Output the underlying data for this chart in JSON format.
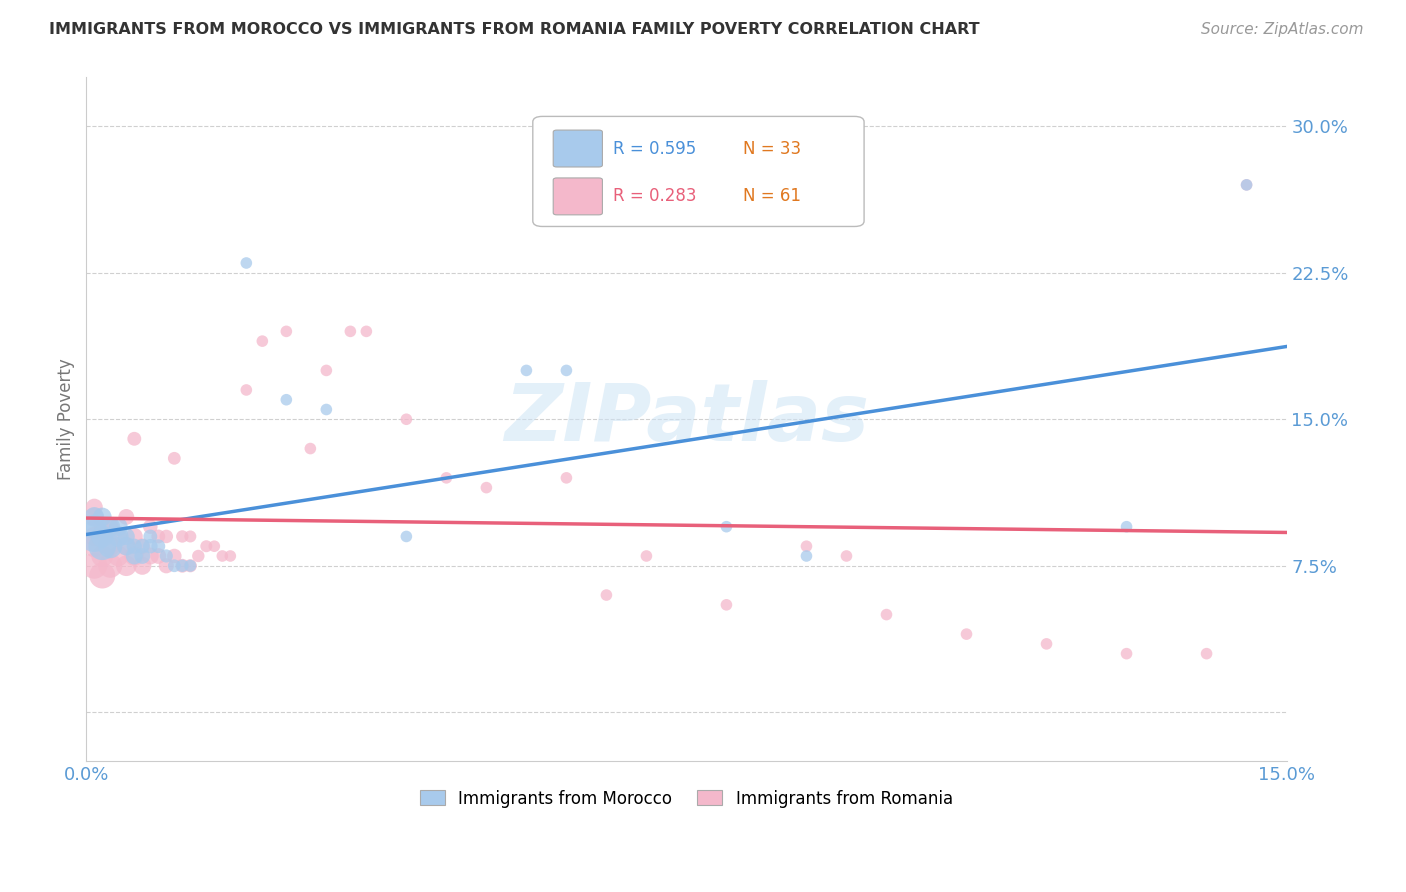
{
  "title": "IMMIGRANTS FROM MOROCCO VS IMMIGRANTS FROM ROMANIA FAMILY POVERTY CORRELATION CHART",
  "source": "Source: ZipAtlas.com",
  "ylabel_label": "Family Poverty",
  "x_min": 0.0,
  "x_max": 0.15,
  "y_min": -0.025,
  "y_max": 0.325,
  "x_ticks": [
    0.0,
    0.03,
    0.06,
    0.09,
    0.12,
    0.15
  ],
  "x_tick_labels": [
    "0.0%",
    "",
    "",
    "",
    "",
    "15.0%"
  ],
  "y_ticks": [
    0.0,
    0.075,
    0.15,
    0.225,
    0.3
  ],
  "y_tick_labels": [
    "",
    "7.5%",
    "15.0%",
    "22.5%",
    "30.0%"
  ],
  "watermark": "ZIPatlas",
  "blue_color": "#a8caec",
  "pink_color": "#f4b8cb",
  "blue_line_color": "#4a90d9",
  "pink_line_color": "#e8607a",
  "axis_color": "#5b9bd5",
  "grid_color": "#d0d0d0",
  "title_color": "#333333",
  "source_color": "#999999",
  "background_color": "#ffffff",
  "n_color": "#e07820",
  "morocco_x": [
    0.001,
    0.001,
    0.001,
    0.002,
    0.002,
    0.002,
    0.003,
    0.003,
    0.004,
    0.004,
    0.005,
    0.005,
    0.006,
    0.006,
    0.007,
    0.007,
    0.008,
    0.008,
    0.009,
    0.01,
    0.011,
    0.012,
    0.013,
    0.02,
    0.025,
    0.03,
    0.04,
    0.055,
    0.06,
    0.08,
    0.09,
    0.13,
    0.145
  ],
  "morocco_y": [
    0.09,
    0.095,
    0.1,
    0.085,
    0.09,
    0.1,
    0.085,
    0.095,
    0.09,
    0.095,
    0.085,
    0.09,
    0.08,
    0.085,
    0.08,
    0.085,
    0.085,
    0.09,
    0.085,
    0.08,
    0.075,
    0.075,
    0.075,
    0.23,
    0.16,
    0.155,
    0.09,
    0.175,
    0.175,
    0.095,
    0.08,
    0.095,
    0.27
  ],
  "morocco_sizes": [
    500,
    300,
    200,
    400,
    250,
    180,
    300,
    200,
    220,
    180,
    180,
    150,
    150,
    120,
    130,
    110,
    110,
    100,
    100,
    90,
    85,
    80,
    75,
    70,
    70,
    70,
    70,
    70,
    70,
    70,
    70,
    70,
    70
  ],
  "romania_x": [
    0.001,
    0.001,
    0.001,
    0.001,
    0.001,
    0.002,
    0.002,
    0.002,
    0.002,
    0.003,
    0.003,
    0.003,
    0.004,
    0.004,
    0.005,
    0.005,
    0.005,
    0.006,
    0.006,
    0.006,
    0.007,
    0.007,
    0.008,
    0.008,
    0.009,
    0.009,
    0.01,
    0.01,
    0.011,
    0.011,
    0.012,
    0.012,
    0.013,
    0.013,
    0.014,
    0.015,
    0.016,
    0.017,
    0.018,
    0.02,
    0.022,
    0.025,
    0.028,
    0.03,
    0.033,
    0.035,
    0.04,
    0.045,
    0.05,
    0.06,
    0.065,
    0.07,
    0.08,
    0.09,
    0.095,
    0.1,
    0.11,
    0.12,
    0.13,
    0.14,
    0.145
  ],
  "romania_y": [
    0.075,
    0.085,
    0.09,
    0.1,
    0.105,
    0.07,
    0.08,
    0.09,
    0.095,
    0.075,
    0.085,
    0.095,
    0.08,
    0.09,
    0.075,
    0.085,
    0.1,
    0.08,
    0.09,
    0.14,
    0.075,
    0.085,
    0.08,
    0.095,
    0.08,
    0.09,
    0.075,
    0.09,
    0.08,
    0.13,
    0.075,
    0.09,
    0.075,
    0.09,
    0.08,
    0.085,
    0.085,
    0.08,
    0.08,
    0.165,
    0.19,
    0.195,
    0.135,
    0.175,
    0.195,
    0.195,
    0.15,
    0.12,
    0.115,
    0.12,
    0.06,
    0.08,
    0.055,
    0.085,
    0.08,
    0.05,
    0.04,
    0.035,
    0.03,
    0.03,
    0.27
  ],
  "romania_sizes": [
    350,
    250,
    200,
    180,
    150,
    350,
    250,
    180,
    150,
    300,
    200,
    150,
    220,
    160,
    220,
    170,
    130,
    200,
    150,
    100,
    170,
    130,
    150,
    110,
    130,
    100,
    120,
    95,
    110,
    85,
    100,
    80,
    90,
    75,
    80,
    75,
    70,
    70,
    70,
    70,
    70,
    70,
    70,
    70,
    70,
    70,
    70,
    70,
    70,
    70,
    70,
    70,
    70,
    70,
    70,
    70,
    70,
    70,
    70,
    70,
    70
  ]
}
